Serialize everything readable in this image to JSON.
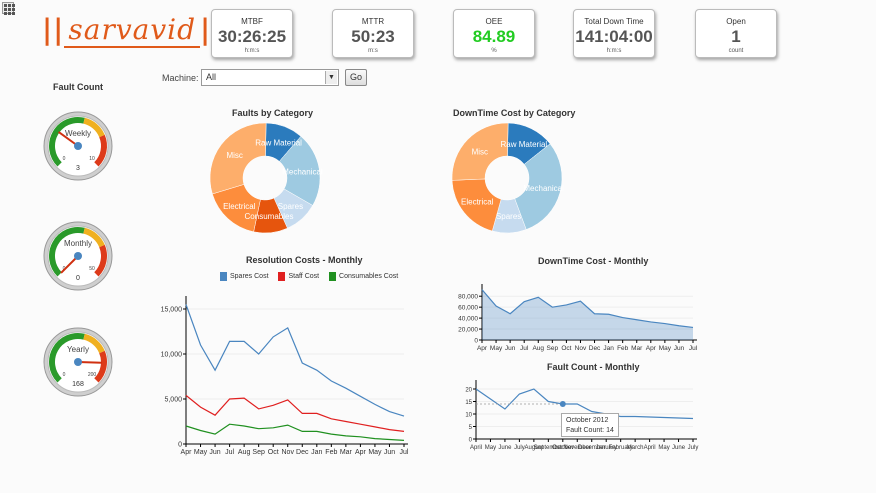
{
  "logo": {
    "text": "sarvavid"
  },
  "kpis": [
    {
      "label": "MTBF",
      "value": "30:26:25",
      "unit": "h:m:s",
      "color": "#555555"
    },
    {
      "label": "MTTR",
      "value": "50:23",
      "unit": "m:s",
      "color": "#555555"
    },
    {
      "label": "OEE",
      "value": "84.89",
      "unit": "%",
      "color": "#22cc22"
    },
    {
      "label": "Total Down Time",
      "value": "141:04:00",
      "unit": "h:m:s",
      "color": "#555555"
    },
    {
      "label": "Open",
      "value": "1",
      "unit": "count",
      "color": "#555555"
    }
  ],
  "fault_count": {
    "title": "Fault Count",
    "gauges": [
      {
        "label": "Weekly",
        "value": 3,
        "min_label": "0",
        "max_label": "10",
        "max": 10
      },
      {
        "label": "Monthly",
        "value": 0,
        "min_label": "0",
        "max_label": "50",
        "max": 50
      },
      {
        "label": "Yearly",
        "value": 168,
        "min_label": "0",
        "max_label": "200",
        "max": 200
      }
    ]
  },
  "filter": {
    "label": "Machine:",
    "selected": "All",
    "go_label": "Go"
  },
  "chart_data": [
    {
      "type": "pie",
      "title": "Faults by Category",
      "labels": [
        "Raw Material",
        "Mechanical",
        "Spares",
        "Consumables",
        "Electrical",
        "Misc"
      ],
      "values": [
        11,
        22,
        10,
        10,
        17,
        30
      ],
      "colors": [
        "#2b7bbd",
        "#9ecae1",
        "#c6dbef",
        "#e6550d",
        "#fd8d3c",
        "#fdae6b"
      ]
    },
    {
      "type": "pie",
      "title": "DownTime Cost by Category",
      "labels": [
        "Raw Material",
        "Mechanical",
        "Spares",
        "Electrical",
        "Misc"
      ],
      "values": [
        14,
        30,
        10,
        20,
        26
      ],
      "colors": [
        "#2b7bbd",
        "#9ecae1",
        "#c6dbef",
        "#fd8d3c",
        "#fdae6b"
      ]
    },
    {
      "type": "line",
      "title": "Resolution Costs - Monthly",
      "categories": [
        "Apr",
        "May",
        "Jun",
        "Jul",
        "Aug",
        "Sep",
        "Oct",
        "Nov",
        "Dec",
        "Jan",
        "Feb",
        "Mar",
        "Apr",
        "May",
        "Jun",
        "Jul"
      ],
      "yticks": [
        "0",
        "5,000",
        "10,000",
        "15,000"
      ],
      "ylim": [
        0,
        16000
      ],
      "series": [
        {
          "name": "Spares Cost",
          "color": "#4a86c0",
          "values": [
            15500,
            11000,
            8200,
            11400,
            11400,
            10000,
            11900,
            12900,
            9000,
            8200,
            7000,
            6200,
            5300,
            4400,
            3600,
            3100
          ]
        },
        {
          "name": "Staff Cost",
          "color": "#e02020",
          "values": [
            5400,
            4100,
            3200,
            5000,
            5100,
            3900,
            4300,
            4900,
            3400,
            3400,
            2800,
            2500,
            2200,
            1900,
            1600,
            1400
          ]
        },
        {
          "name": "Consumables Cost",
          "color": "#209020",
          "values": [
            2000,
            1500,
            1100,
            2200,
            2000,
            1700,
            1800,
            2100,
            1400,
            1400,
            1100,
            900,
            800,
            600,
            500,
            400
          ]
        }
      ]
    },
    {
      "type": "area",
      "title": "DownTime Cost - Monthly",
      "categories": [
        "Apr",
        "May",
        "Jun",
        "Jul",
        "Aug",
        "Sep",
        "Oct",
        "Nov",
        "Dec",
        "Jan",
        "Feb",
        "Mar",
        "Apr",
        "May",
        "Jun",
        "Jul"
      ],
      "yticks": [
        "0",
        "20,000",
        "40,000",
        "60,000",
        "80,000"
      ],
      "ylim": [
        0,
        95000
      ],
      "series": [
        {
          "color": "#4a86c0",
          "values": [
            92000,
            62000,
            48000,
            70000,
            78000,
            60000,
            64000,
            71000,
            48000,
            47000,
            41000,
            37000,
            33000,
            30000,
            26000,
            23000
          ]
        }
      ]
    },
    {
      "type": "line",
      "title": "Fault Count - Monthly",
      "categories": [
        "April",
        "May",
        "June",
        "July",
        "August",
        "September",
        "October",
        "November",
        "December",
        "January",
        "February",
        "March",
        "April",
        "May",
        "June",
        "July"
      ],
      "yticks": [
        "0",
        "5",
        "10",
        "15",
        "20"
      ],
      "ylim": [
        0,
        22
      ],
      "series": [
        {
          "color": "#4a86c0",
          "values": [
            20,
            16,
            12,
            18,
            20,
            15,
            14,
            14,
            11,
            10,
            9,
            9,
            8.8,
            8.6,
            8.4,
            8.2
          ]
        }
      ],
      "tooltip": {
        "title": "October 2012",
        "text": "Fault Count: 14",
        "index": 6
      }
    }
  ]
}
